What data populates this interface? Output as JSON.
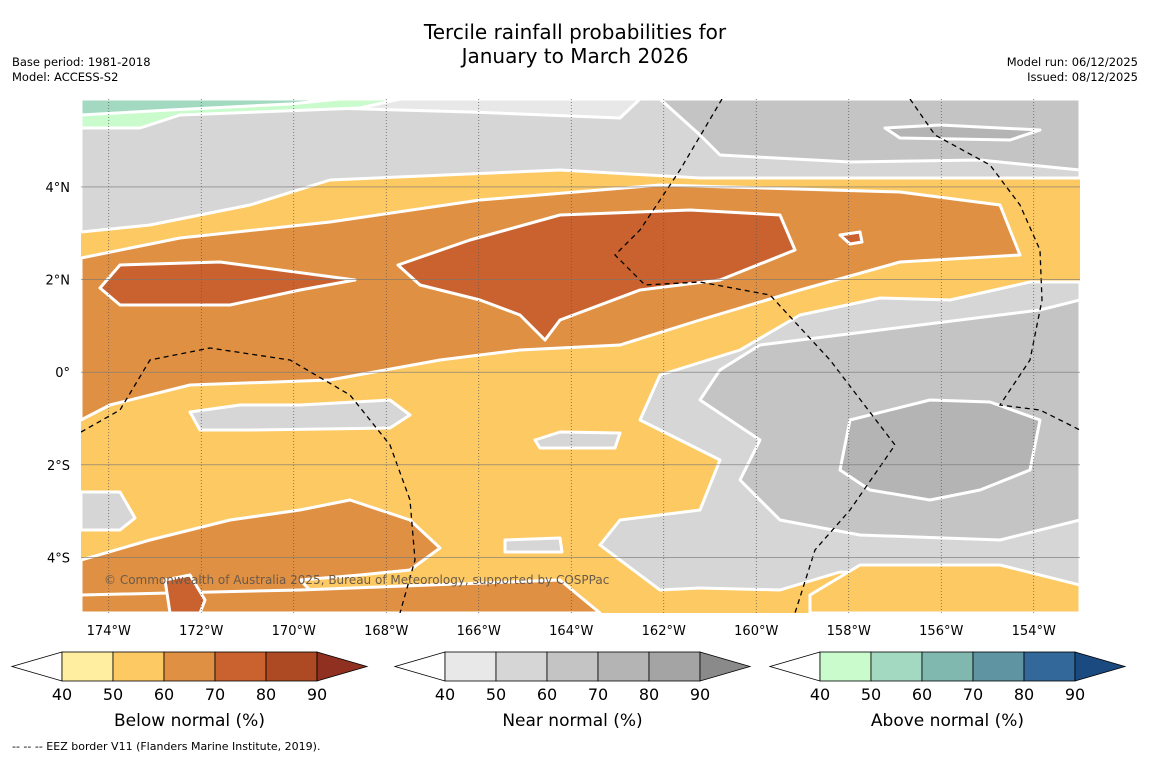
{
  "title": {
    "line1": "Tercile rainfall probabilities for",
    "line2": "January to March 2026"
  },
  "meta_left": {
    "base_period": "Base period: 1981-2018",
    "model": "Model: ACCESS-S2"
  },
  "meta_right": {
    "model_run": "Model run: 06/12/2025",
    "issued": "Issued: 08/12/2025"
  },
  "copyright": "© Commonwealth of Australia 2025, Bureau of Meteorology, supported by COSPPac",
  "footer": "-- -- -- EEZ border V11 (Flanders Marine Institute, 2019).",
  "colors": {
    "below": [
      "#ffeea0",
      "#fdc963",
      "#e09043",
      "#ca6230",
      "#ad4923",
      "#8f3020"
    ],
    "near": [
      "#e8e8e8",
      "#d6d6d6",
      "#c4c4c4",
      "#b4b4b4",
      "#a4a4a4",
      "#8a8a8a"
    ],
    "above": [
      "#c9fbcc",
      "#a2d9c0",
      "#80b8b0",
      "#5f94a2",
      "#33689a",
      "#1b4a80"
    ]
  },
  "chart_data": {
    "type": "heatmap",
    "title": "Tercile rainfall probabilities for January to March 2026",
    "x_axis": {
      "ticks": [
        "174°W",
        "172°W",
        "170°W",
        "168°W",
        "166°W",
        "164°W",
        "162°W",
        "160°W",
        "158°W",
        "156°W",
        "154°W"
      ],
      "values": [
        -174,
        -172,
        -170,
        -168,
        -166,
        -164,
        -162,
        -160,
        -158,
        -156,
        -154
      ],
      "range": [
        -174.6,
        -153
      ]
    },
    "y_axis": {
      "ticks": [
        "4°N",
        "2°N",
        "0°",
        "2°S",
        "4°S"
      ],
      "values": [
        4,
        2,
        0,
        -2,
        -4
      ],
      "range": [
        -5.2,
        5.9
      ]
    },
    "regions": [
      {
        "category": "near",
        "level": 60,
        "lon": [
          -174.6,
          -153
        ],
        "lat": [
          4.3,
          5.9
        ],
        "description": "north band, near normal"
      },
      {
        "category": "above",
        "level": 50,
        "lon": [
          -174.6,
          -167
        ],
        "lat": [
          5.2,
          5.9
        ],
        "description": "north-west corner, above normal"
      },
      {
        "category": "below",
        "level": 60,
        "lon": [
          -174.6,
          -153
        ],
        "lat": [
          -0.8,
          4.3
        ],
        "description": "equatorial band, below normal"
      },
      {
        "category": "below",
        "level": 70,
        "lon": [
          -174.6,
          -155
        ],
        "lat": [
          0.5,
          3.8
        ],
        "description": "core of below-normal band"
      },
      {
        "category": "below",
        "level": 80,
        "lon": [
          -168,
          -159
        ],
        "lat": [
          1.4,
          3.5
        ],
        "description": "central peak, below normal 70-80%"
      },
      {
        "category": "near",
        "level": 60,
        "lon": [
          -162,
          -153
        ],
        "lat": [
          -4.5,
          2.0
        ],
        "description": "south-east, near normal"
      },
      {
        "category": "near",
        "level": 70,
        "lon": [
          -158,
          -154
        ],
        "lat": [
          -2.7,
          -0.3
        ],
        "description": "near-normal peak 60-70%"
      },
      {
        "category": "below",
        "level": 60,
        "lon": [
          -174.6,
          -161
        ],
        "lat": [
          -5.2,
          -0.8
        ],
        "description": "south-west, below normal"
      },
      {
        "category": "below",
        "level": 60,
        "lon": [
          -158,
          -153
        ],
        "lat": [
          -5.2,
          -4.5
        ],
        "description": "south-east strip, below normal"
      }
    ],
    "colorbars": [
      {
        "name": "Below normal (%)",
        "ticks": [
          "40",
          "50",
          "60",
          "70",
          "80",
          "90"
        ]
      },
      {
        "name": "Near normal (%)",
        "ticks": [
          "40",
          "50",
          "60",
          "70",
          "80",
          "90"
        ]
      },
      {
        "name": "Above normal (%)",
        "ticks": [
          "40",
          "50",
          "60",
          "70",
          "80",
          "90"
        ]
      }
    ]
  }
}
